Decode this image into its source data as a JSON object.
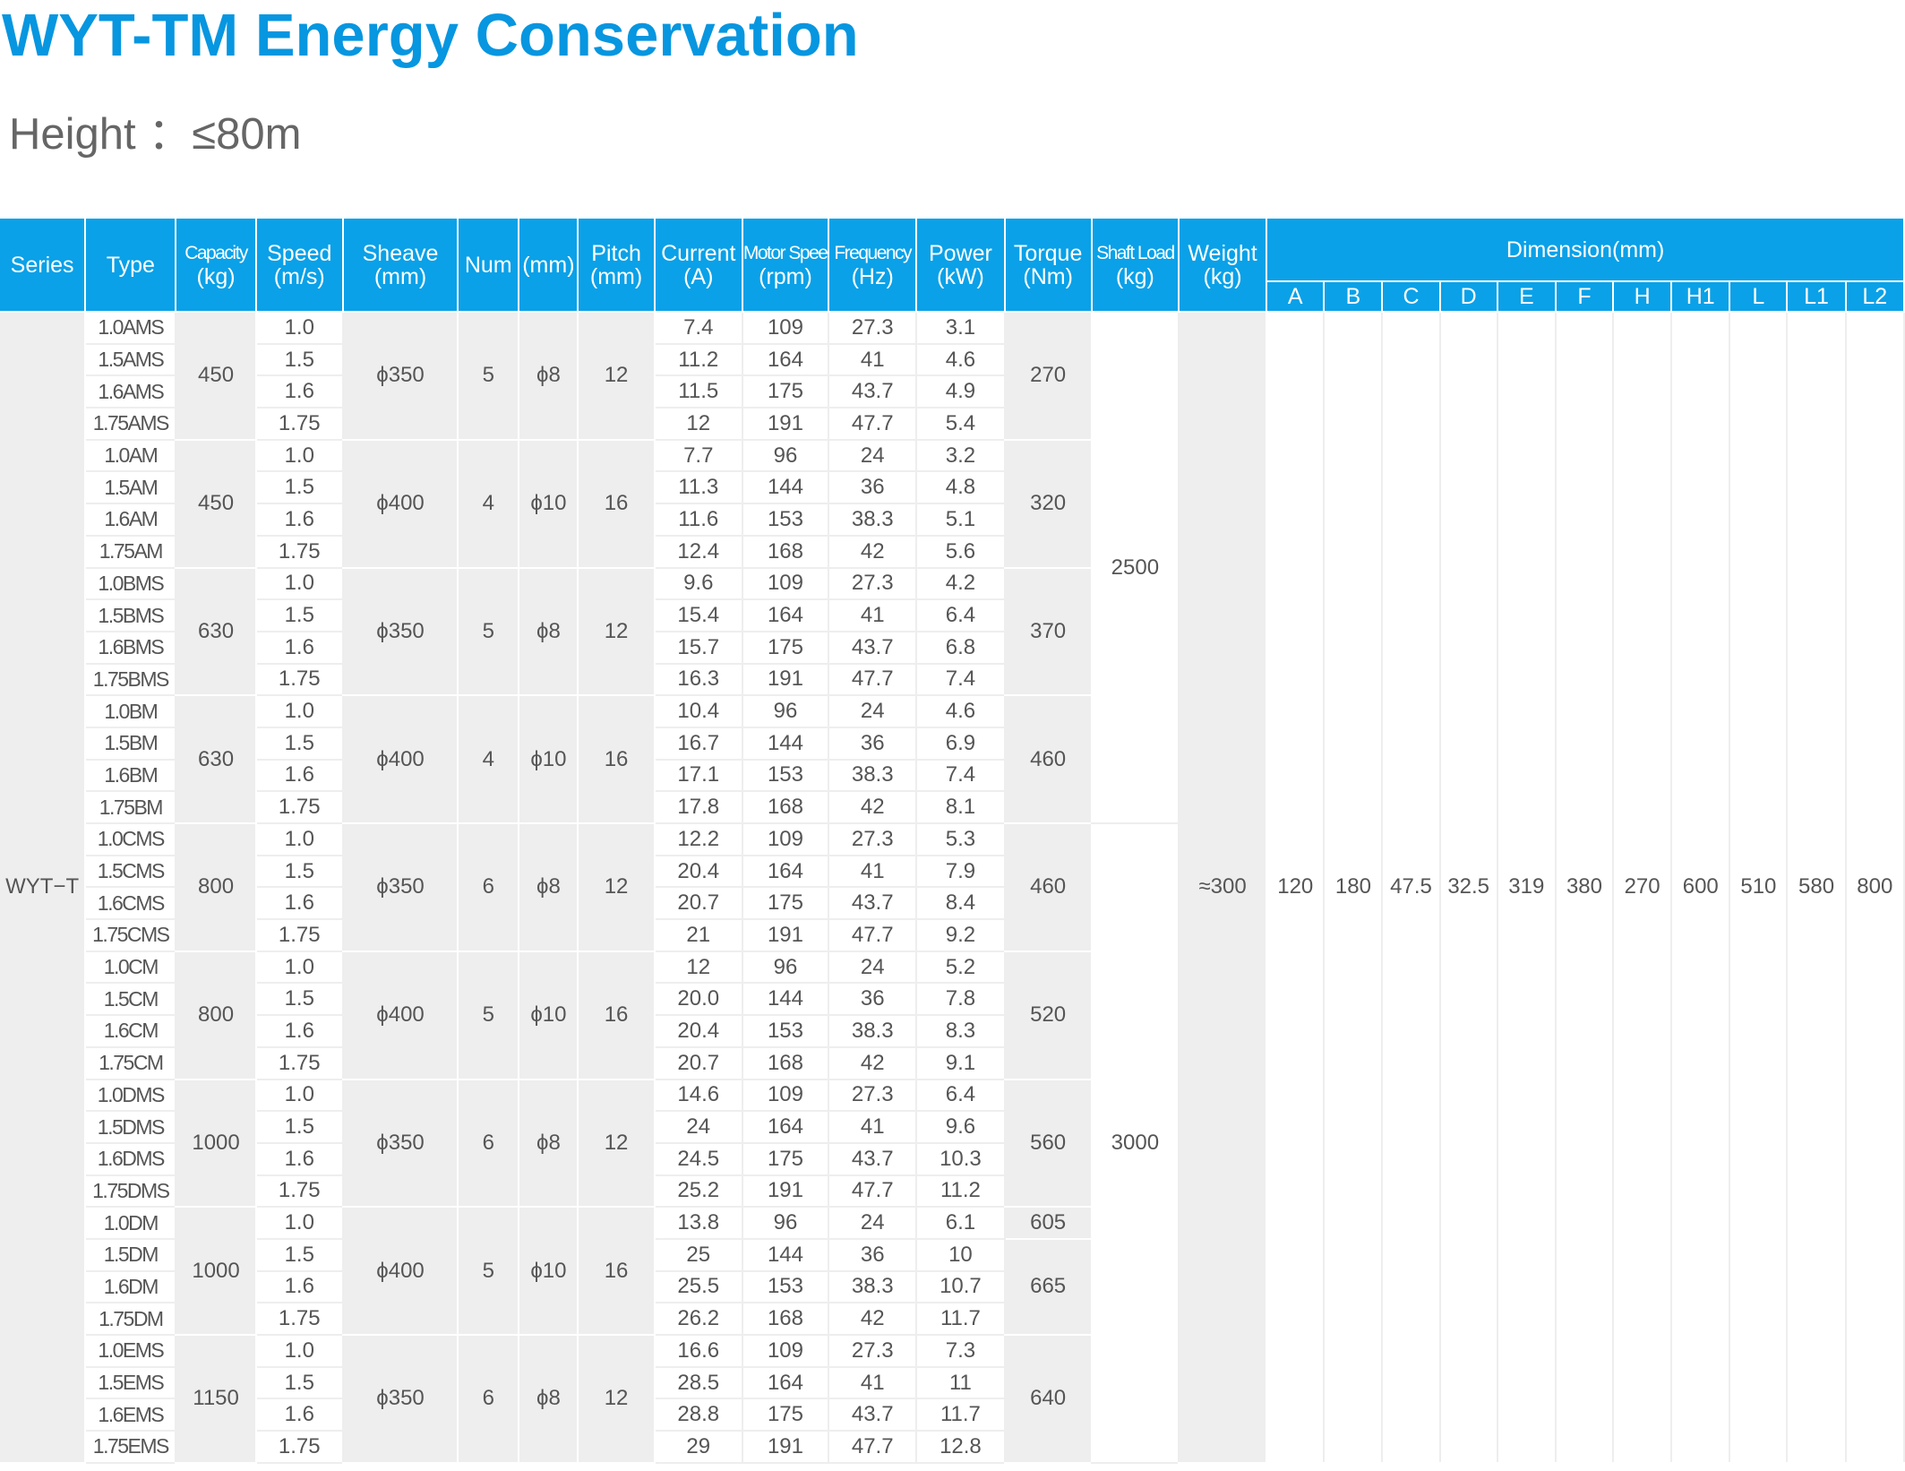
{
  "title": "WYT-TM Energy Conservation",
  "subtitle": "Height ：≤80m",
  "headers": {
    "series": "Series",
    "type": "Type",
    "capacity": [
      "Capacity",
      "(kg)"
    ],
    "speed": [
      "Speed",
      "(m/s)"
    ],
    "sheave": [
      "Sheave",
      "(mm)"
    ],
    "num": "Num",
    "rope": "(mm)",
    "pitch": [
      "Pitch",
      "(mm)"
    ],
    "current": [
      "Current",
      "(A)"
    ],
    "motor_speed": [
      "Motor Speed",
      "(rpm)"
    ],
    "frequency": [
      "Frequency",
      "(Hz)"
    ],
    "power": [
      "Power",
      "(kW)"
    ],
    "torque": [
      "Torque",
      "(Nm)"
    ],
    "shaft_load": [
      "Shaft Load",
      "(kg)"
    ],
    "weight": [
      "Weight",
      "(kg)"
    ],
    "dimension": "Dimension(mm)",
    "dim_cols": [
      "A",
      "B",
      "C",
      "D",
      "E",
      "F",
      "H",
      "H1",
      "L",
      "L1",
      "L2"
    ]
  },
  "series": "WYT−T",
  "weight": "≈300",
  "shaft_loads": [
    "2500",
    "3000"
  ],
  "dimensions": [
    "120",
    "180",
    "47.5",
    "32.5",
    "319",
    "380",
    "270",
    "600",
    "510",
    "580",
    "800"
  ],
  "groups": [
    {
      "capacity": "450",
      "sheave": "ϕ350",
      "num": "5",
      "rope": "ϕ8",
      "pitch": "12",
      "torque": [
        "270"
      ],
      "rows": [
        {
          "type": "1.0AMS",
          "speed": "1.0",
          "current": "7.4",
          "rpm": "109",
          "hz": "27.3",
          "kw": "3.1"
        },
        {
          "type": "1.5AMS",
          "speed": "1.5",
          "current": "11.2",
          "rpm": "164",
          "hz": "41",
          "kw": "4.6"
        },
        {
          "type": "1.6AMS",
          "speed": "1.6",
          "current": "11.5",
          "rpm": "175",
          "hz": "43.7",
          "kw": "4.9"
        },
        {
          "type": "1.75AMS",
          "speed": "1.75",
          "current": "12",
          "rpm": "191",
          "hz": "47.7",
          "kw": "5.4"
        }
      ]
    },
    {
      "capacity": "450",
      "sheave": "ϕ400",
      "num": "4",
      "rope": "ϕ10",
      "pitch": "16",
      "torque": [
        "320"
      ],
      "rows": [
        {
          "type": "1.0AM",
          "speed": "1.0",
          "current": "7.7",
          "rpm": "96",
          "hz": "24",
          "kw": "3.2"
        },
        {
          "type": "1.5AM",
          "speed": "1.5",
          "current": "11.3",
          "rpm": "144",
          "hz": "36",
          "kw": "4.8"
        },
        {
          "type": "1.6AM",
          "speed": "1.6",
          "current": "11.6",
          "rpm": "153",
          "hz": "38.3",
          "kw": "5.1"
        },
        {
          "type": "1.75AM",
          "speed": "1.75",
          "current": "12.4",
          "rpm": "168",
          "hz": "42",
          "kw": "5.6"
        }
      ]
    },
    {
      "capacity": "630",
      "sheave": "ϕ350",
      "num": "5",
      "rope": "ϕ8",
      "pitch": "12",
      "torque": [
        "370"
      ],
      "rows": [
        {
          "type": "1.0BMS",
          "speed": "1.0",
          "current": "9.6",
          "rpm": "109",
          "hz": "27.3",
          "kw": "4.2"
        },
        {
          "type": "1.5BMS",
          "speed": "1.5",
          "current": "15.4",
          "rpm": "164",
          "hz": "41",
          "kw": "6.4"
        },
        {
          "type": "1.6BMS",
          "speed": "1.6",
          "current": "15.7",
          "rpm": "175",
          "hz": "43.7",
          "kw": "6.8"
        },
        {
          "type": "1.75BMS",
          "speed": "1.75",
          "current": "16.3",
          "rpm": "191",
          "hz": "47.7",
          "kw": "7.4"
        }
      ]
    },
    {
      "capacity": "630",
      "sheave": "ϕ400",
      "num": "4",
      "rope": "ϕ10",
      "pitch": "16",
      "torque": [
        "460"
      ],
      "rows": [
        {
          "type": "1.0BM",
          "speed": "1.0",
          "current": "10.4",
          "rpm": "96",
          "hz": "24",
          "kw": "4.6"
        },
        {
          "type": "1.5BM",
          "speed": "1.5",
          "current": "16.7",
          "rpm": "144",
          "hz": "36",
          "kw": "6.9"
        },
        {
          "type": "1.6BM",
          "speed": "1.6",
          "current": "17.1",
          "rpm": "153",
          "hz": "38.3",
          "kw": "7.4"
        },
        {
          "type": "1.75BM",
          "speed": "1.75",
          "current": "17.8",
          "rpm": "168",
          "hz": "42",
          "kw": "8.1"
        }
      ]
    },
    {
      "capacity": "800",
      "sheave": "ϕ350",
      "num": "6",
      "rope": "ϕ8",
      "pitch": "12",
      "torque": [
        "460"
      ],
      "rows": [
        {
          "type": "1.0CMS",
          "speed": "1.0",
          "current": "12.2",
          "rpm": "109",
          "hz": "27.3",
          "kw": "5.3"
        },
        {
          "type": "1.5CMS",
          "speed": "1.5",
          "current": "20.4",
          "rpm": "164",
          "hz": "41",
          "kw": "7.9"
        },
        {
          "type": "1.6CMS",
          "speed": "1.6",
          "current": "20.7",
          "rpm": "175",
          "hz": "43.7",
          "kw": "8.4"
        },
        {
          "type": "1.75CMS",
          "speed": "1.75",
          "current": "21",
          "rpm": "191",
          "hz": "47.7",
          "kw": "9.2"
        }
      ]
    },
    {
      "capacity": "800",
      "sheave": "ϕ400",
      "num": "5",
      "rope": "ϕ10",
      "pitch": "16",
      "torque": [
        "520"
      ],
      "rows": [
        {
          "type": "1.0CM",
          "speed": "1.0",
          "current": "12",
          "rpm": "96",
          "hz": "24",
          "kw": "5.2"
        },
        {
          "type": "1.5CM",
          "speed": "1.5",
          "current": "20.0",
          "rpm": "144",
          "hz": "36",
          "kw": "7.8"
        },
        {
          "type": "1.6CM",
          "speed": "1.6",
          "current": "20.4",
          "rpm": "153",
          "hz": "38.3",
          "kw": "8.3"
        },
        {
          "type": "1.75CM",
          "speed": "1.75",
          "current": "20.7",
          "rpm": "168",
          "hz": "42",
          "kw": "9.1"
        }
      ]
    },
    {
      "capacity": "1000",
      "sheave": "ϕ350",
      "num": "6",
      "rope": "ϕ8",
      "pitch": "12",
      "torque": [
        "560"
      ],
      "rows": [
        {
          "type": "1.0DMS",
          "speed": "1.0",
          "current": "14.6",
          "rpm": "109",
          "hz": "27.3",
          "kw": "6.4"
        },
        {
          "type": "1.5DMS",
          "speed": "1.5",
          "current": "24",
          "rpm": "164",
          "hz": "41",
          "kw": "9.6"
        },
        {
          "type": "1.6DMS",
          "speed": "1.6",
          "current": "24.5",
          "rpm": "175",
          "hz": "43.7",
          "kw": "10.3"
        },
        {
          "type": "1.75DMS",
          "speed": "1.75",
          "current": "25.2",
          "rpm": "191",
          "hz": "47.7",
          "kw": "11.2"
        }
      ]
    },
    {
      "capacity": "1000",
      "sheave": "ϕ400",
      "num": "5",
      "rope": "ϕ10",
      "pitch": "16",
      "torque": [
        "605",
        "665"
      ],
      "rows": [
        {
          "type": "1.0DM",
          "speed": "1.0",
          "current": "13.8",
          "rpm": "96",
          "hz": "24",
          "kw": "6.1"
        },
        {
          "type": "1.5DM",
          "speed": "1.5",
          "current": "25",
          "rpm": "144",
          "hz": "36",
          "kw": "10"
        },
        {
          "type": "1.6DM",
          "speed": "1.6",
          "current": "25.5",
          "rpm": "153",
          "hz": "38.3",
          "kw": "10.7"
        },
        {
          "type": "1.75DM",
          "speed": "1.75",
          "current": "26.2",
          "rpm": "168",
          "hz": "42",
          "kw": "11.7"
        }
      ]
    },
    {
      "capacity": "1150",
      "sheave": "ϕ350",
      "num": "6",
      "rope": "ϕ8",
      "pitch": "12",
      "torque": [
        "640"
      ],
      "rows": [
        {
          "type": "1.0EMS",
          "speed": "1.0",
          "current": "16.6",
          "rpm": "109",
          "hz": "27.3",
          "kw": "7.3"
        },
        {
          "type": "1.5EMS",
          "speed": "1.5",
          "current": "28.5",
          "rpm": "164",
          "hz": "41",
          "kw": "11"
        },
        {
          "type": "1.6EMS",
          "speed": "1.6",
          "current": "28.8",
          "rpm": "175",
          "hz": "43.7",
          "kw": "11.7"
        },
        {
          "type": "1.75EMS",
          "speed": "1.75",
          "current": "29",
          "rpm": "191",
          "hz": "47.7",
          "kw": "12.8"
        }
      ]
    }
  ]
}
